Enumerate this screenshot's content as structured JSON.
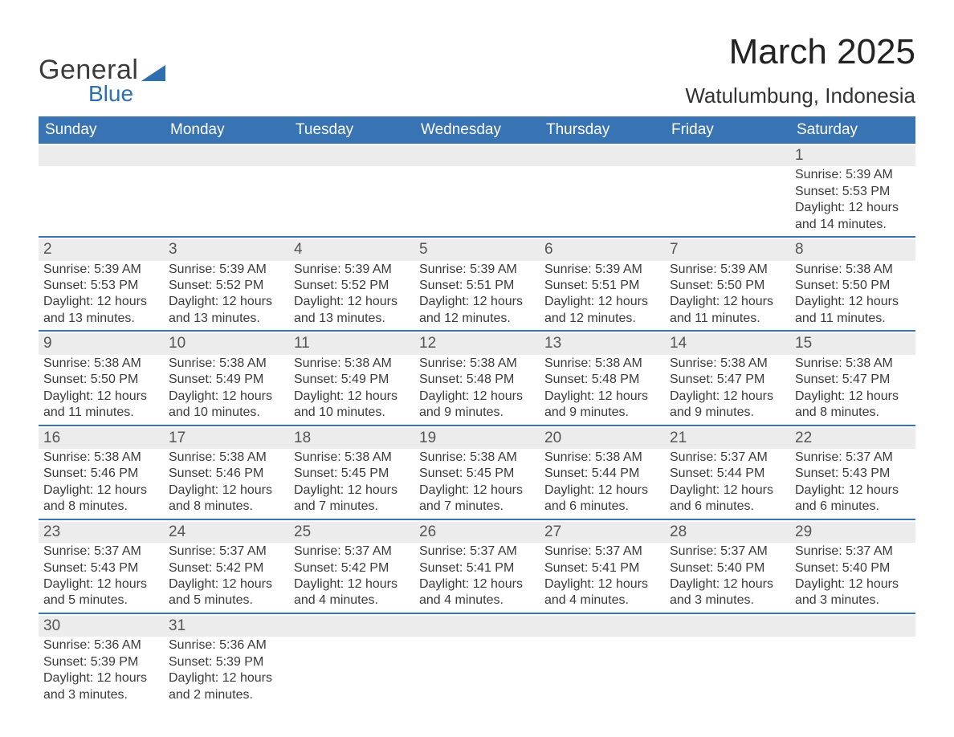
{
  "brand": {
    "word1": "General",
    "word2": "Blue",
    "accent_color": "#2f6fb0",
    "text_color": "#3b3b3b"
  },
  "title": "March 2025",
  "location": "Watulumbung, Indonesia",
  "calendar": {
    "header_bg": "#3873b3",
    "header_fg": "#ffffff",
    "band_bg": "#ececec",
    "row_border": "#3873b3",
    "weekday_labels": [
      "Sunday",
      "Monday",
      "Tuesday",
      "Wednesday",
      "Thursday",
      "Friday",
      "Saturday"
    ],
    "weeks": [
      [
        null,
        null,
        null,
        null,
        null,
        null,
        {
          "day": "1",
          "sunrise": "5:39 AM",
          "sunset": "5:53 PM",
          "daylight": "12 hours and 14 minutes."
        }
      ],
      [
        {
          "day": "2",
          "sunrise": "5:39 AM",
          "sunset": "5:53 PM",
          "daylight": "12 hours and 13 minutes."
        },
        {
          "day": "3",
          "sunrise": "5:39 AM",
          "sunset": "5:52 PM",
          "daylight": "12 hours and 13 minutes."
        },
        {
          "day": "4",
          "sunrise": "5:39 AM",
          "sunset": "5:52 PM",
          "daylight": "12 hours and 13 minutes."
        },
        {
          "day": "5",
          "sunrise": "5:39 AM",
          "sunset": "5:51 PM",
          "daylight": "12 hours and 12 minutes."
        },
        {
          "day": "6",
          "sunrise": "5:39 AM",
          "sunset": "5:51 PM",
          "daylight": "12 hours and 12 minutes."
        },
        {
          "day": "7",
          "sunrise": "5:39 AM",
          "sunset": "5:50 PM",
          "daylight": "12 hours and 11 minutes."
        },
        {
          "day": "8",
          "sunrise": "5:38 AM",
          "sunset": "5:50 PM",
          "daylight": "12 hours and 11 minutes."
        }
      ],
      [
        {
          "day": "9",
          "sunrise": "5:38 AM",
          "sunset": "5:50 PM",
          "daylight": "12 hours and 11 minutes."
        },
        {
          "day": "10",
          "sunrise": "5:38 AM",
          "sunset": "5:49 PM",
          "daylight": "12 hours and 10 minutes."
        },
        {
          "day": "11",
          "sunrise": "5:38 AM",
          "sunset": "5:49 PM",
          "daylight": "12 hours and 10 minutes."
        },
        {
          "day": "12",
          "sunrise": "5:38 AM",
          "sunset": "5:48 PM",
          "daylight": "12 hours and 9 minutes."
        },
        {
          "day": "13",
          "sunrise": "5:38 AM",
          "sunset": "5:48 PM",
          "daylight": "12 hours and 9 minutes."
        },
        {
          "day": "14",
          "sunrise": "5:38 AM",
          "sunset": "5:47 PM",
          "daylight": "12 hours and 9 minutes."
        },
        {
          "day": "15",
          "sunrise": "5:38 AM",
          "sunset": "5:47 PM",
          "daylight": "12 hours and 8 minutes."
        }
      ],
      [
        {
          "day": "16",
          "sunrise": "5:38 AM",
          "sunset": "5:46 PM",
          "daylight": "12 hours and 8 minutes."
        },
        {
          "day": "17",
          "sunrise": "5:38 AM",
          "sunset": "5:46 PM",
          "daylight": "12 hours and 8 minutes."
        },
        {
          "day": "18",
          "sunrise": "5:38 AM",
          "sunset": "5:45 PM",
          "daylight": "12 hours and 7 minutes."
        },
        {
          "day": "19",
          "sunrise": "5:38 AM",
          "sunset": "5:45 PM",
          "daylight": "12 hours and 7 minutes."
        },
        {
          "day": "20",
          "sunrise": "5:38 AM",
          "sunset": "5:44 PM",
          "daylight": "12 hours and 6 minutes."
        },
        {
          "day": "21",
          "sunrise": "5:37 AM",
          "sunset": "5:44 PM",
          "daylight": "12 hours and 6 minutes."
        },
        {
          "day": "22",
          "sunrise": "5:37 AM",
          "sunset": "5:43 PM",
          "daylight": "12 hours and 6 minutes."
        }
      ],
      [
        {
          "day": "23",
          "sunrise": "5:37 AM",
          "sunset": "5:43 PM",
          "daylight": "12 hours and 5 minutes."
        },
        {
          "day": "24",
          "sunrise": "5:37 AM",
          "sunset": "5:42 PM",
          "daylight": "12 hours and 5 minutes."
        },
        {
          "day": "25",
          "sunrise": "5:37 AM",
          "sunset": "5:42 PM",
          "daylight": "12 hours and 4 minutes."
        },
        {
          "day": "26",
          "sunrise": "5:37 AM",
          "sunset": "5:41 PM",
          "daylight": "12 hours and 4 minutes."
        },
        {
          "day": "27",
          "sunrise": "5:37 AM",
          "sunset": "5:41 PM",
          "daylight": "12 hours and 4 minutes."
        },
        {
          "day": "28",
          "sunrise": "5:37 AM",
          "sunset": "5:40 PM",
          "daylight": "12 hours and 3 minutes."
        },
        {
          "day": "29",
          "sunrise": "5:37 AM",
          "sunset": "5:40 PM",
          "daylight": "12 hours and 3 minutes."
        }
      ],
      [
        {
          "day": "30",
          "sunrise": "5:36 AM",
          "sunset": "5:39 PM",
          "daylight": "12 hours and 3 minutes."
        },
        {
          "day": "31",
          "sunrise": "5:36 AM",
          "sunset": "5:39 PM",
          "daylight": "12 hours and 2 minutes."
        },
        null,
        null,
        null,
        null,
        null
      ]
    ],
    "labels": {
      "sunrise_prefix": "Sunrise: ",
      "sunset_prefix": "Sunset: ",
      "daylight_prefix": "Daylight: "
    }
  }
}
